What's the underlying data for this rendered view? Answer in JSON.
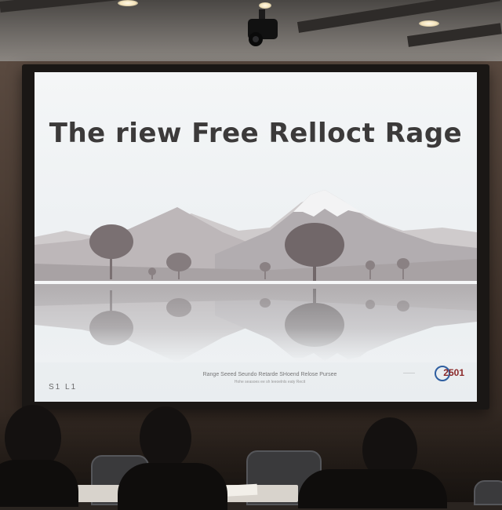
{
  "slide": {
    "title": "The riew Free Relloct Rage",
    "footer_left": "S1 L1",
    "footer_center_line1": "Range Seeed Seundo Retarde SHoend Relose Pursee",
    "footer_center_line2": "Hohe seasoes ee sh leeoelnls eaty Recit",
    "logo_text": "2501"
  },
  "colors": {
    "screen": "#eef1f3",
    "mountain": "#b9b4b6",
    "tree": "#7a7072",
    "logo_red": "#8b2a2a",
    "logo_blue": "#2f5fa0"
  }
}
